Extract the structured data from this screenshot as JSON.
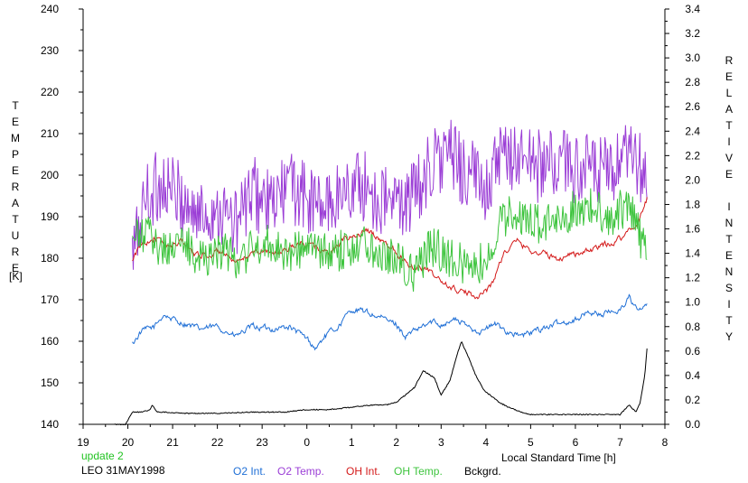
{
  "chart_data": {
    "type": "line",
    "title": "",
    "station": "LEO 31MAY1998",
    "update": "update 2",
    "xlabel": "Local Standard Time [h]",
    "ylabel_left": "TEMPERATURE",
    "ylabel_left_unit": "[K]",
    "ylabel_right": "RELATIVE INTENSITY",
    "xlim": [
      19,
      32
    ],
    "ylim_left": [
      140,
      240
    ],
    "ylim_right": [
      0.0,
      3.4
    ],
    "x_ticks": [
      "19",
      "20",
      "21",
      "22",
      "23",
      "0",
      "1",
      "2",
      "3",
      "4",
      "5",
      "6",
      "7",
      "8"
    ],
    "y_left_ticks": [
      "140",
      "150",
      "160",
      "170",
      "180",
      "190",
      "200",
      "210",
      "220",
      "230",
      "240"
    ],
    "y_right_ticks": [
      "0.0",
      "0.2",
      "0.4",
      "0.6",
      "0.8",
      "1.0",
      "1.2",
      "1.4",
      "1.6",
      "1.8",
      "2.0",
      "2.2",
      "2.4",
      "2.6",
      "2.8",
      "3.0",
      "3.2",
      "3.4"
    ],
    "grid": false,
    "legend_position": "bottom",
    "series": [
      {
        "name": "O2 Int.",
        "axis": "right",
        "color": "#1f6fd6",
        "x": [
          20.1,
          20.3,
          20.6,
          20.8,
          21.0,
          21.3,
          21.6,
          22.0,
          22.4,
          22.8,
          23.2,
          23.6,
          24.0,
          24.2,
          24.4,
          24.7,
          25.0,
          25.3,
          25.6,
          26.0,
          26.2,
          26.5,
          26.8,
          27.0,
          27.3,
          27.6,
          27.9,
          28.2,
          28.5,
          28.8,
          29.2,
          29.6,
          30.0,
          30.3,
          30.6,
          31.0,
          31.2,
          31.4,
          31.6
        ],
        "y": [
          0.66,
          0.76,
          0.8,
          0.9,
          0.86,
          0.82,
          0.78,
          0.8,
          0.72,
          0.8,
          0.78,
          0.8,
          0.7,
          0.62,
          0.72,
          0.8,
          0.94,
          0.92,
          0.88,
          0.82,
          0.72,
          0.78,
          0.84,
          0.82,
          0.86,
          0.8,
          0.76,
          0.82,
          0.76,
          0.72,
          0.78,
          0.82,
          0.86,
          0.92,
          0.9,
          0.94,
          1.04,
          0.92,
          0.98
        ]
      },
      {
        "name": "O2 Temp.",
        "axis": "left",
        "color": "#9b3ed6",
        "x": [
          20.1,
          20.4,
          20.8,
          21.2,
          21.6,
          22.0,
          22.4,
          22.8,
          23.2,
          23.6,
          24.0,
          24.4,
          24.8,
          25.2,
          25.6,
          26.0,
          26.4,
          26.8,
          27.2,
          27.6,
          28.0,
          28.4,
          28.8,
          29.2,
          29.6,
          30.0,
          30.4,
          30.8,
          31.2,
          31.6
        ],
        "y": [
          180,
          195,
          198,
          194,
          190,
          192,
          188,
          196,
          192,
          198,
          194,
          192,
          196,
          198,
          194,
          193,
          195,
          203,
          205,
          200,
          198,
          204,
          205,
          202,
          203,
          202,
          201,
          200,
          204,
          200
        ]
      },
      {
        "name": "OH Int.",
        "axis": "right",
        "color": "#d41a1a",
        "x": [
          20.1,
          20.3,
          20.6,
          20.9,
          21.2,
          21.5,
          21.8,
          22.1,
          22.4,
          22.7,
          23.0,
          23.3,
          23.6,
          23.9,
          24.2,
          24.5,
          24.8,
          25.1,
          25.4,
          25.7,
          26.0,
          26.3,
          26.6,
          26.9,
          27.2,
          27.5,
          27.8,
          28.1,
          28.4,
          28.7,
          29.0,
          29.3,
          29.6,
          29.9,
          30.2,
          30.5,
          30.8,
          31.1,
          31.4,
          31.6
        ],
        "y": [
          1.33,
          1.48,
          1.53,
          1.45,
          1.5,
          1.4,
          1.38,
          1.42,
          1.3,
          1.38,
          1.43,
          1.4,
          1.45,
          1.48,
          1.45,
          1.4,
          1.5,
          1.55,
          1.58,
          1.5,
          1.42,
          1.3,
          1.28,
          1.2,
          1.12,
          1.08,
          1.05,
          1.12,
          1.4,
          1.5,
          1.42,
          1.4,
          1.35,
          1.4,
          1.4,
          1.45,
          1.48,
          1.55,
          1.65,
          1.85
        ]
      },
      {
        "name": "OH Temp.",
        "axis": "left",
        "color": "#3ec43e",
        "x": [
          20.1,
          20.4,
          20.8,
          21.2,
          21.6,
          22.0,
          22.4,
          22.8,
          23.2,
          23.6,
          24.0,
          24.4,
          24.8,
          25.2,
          25.6,
          26.0,
          26.4,
          26.8,
          27.2,
          27.6,
          28.0,
          28.4,
          28.8,
          29.2,
          29.6,
          30.0,
          30.4,
          30.8,
          31.2,
          31.6
        ],
        "y": [
          184,
          186,
          182,
          184,
          180,
          182,
          180,
          182,
          184,
          181,
          183,
          181,
          182,
          184,
          182,
          180,
          176,
          183,
          180,
          178,
          179,
          190,
          190,
          188,
          189,
          192,
          192,
          190,
          193,
          180
        ]
      },
      {
        "name": "Bckgrd.",
        "axis": "right",
        "color": "#000000",
        "x": [
          19.7,
          19.95,
          20.1,
          20.3,
          20.5,
          20.55,
          20.65,
          20.8,
          21.3,
          22.0,
          22.8,
          23.5,
          24.0,
          24.5,
          25.0,
          25.5,
          25.8,
          26.0,
          26.4,
          26.6,
          26.85,
          27.0,
          27.2,
          27.3,
          27.45,
          27.6,
          27.75,
          27.95,
          28.3,
          28.5,
          28.8,
          29.0,
          29.5,
          30.0,
          30.5,
          31.0,
          31.2,
          31.35,
          31.45,
          31.55,
          31.6
        ],
        "y": [
          0.0,
          0.0,
          0.1,
          0.1,
          0.12,
          0.16,
          0.1,
          0.1,
          0.09,
          0.09,
          0.1,
          0.1,
          0.12,
          0.12,
          0.14,
          0.16,
          0.16,
          0.18,
          0.3,
          0.44,
          0.38,
          0.24,
          0.36,
          0.5,
          0.68,
          0.56,
          0.42,
          0.28,
          0.18,
          0.14,
          0.1,
          0.08,
          0.08,
          0.08,
          0.08,
          0.08,
          0.16,
          0.1,
          0.18,
          0.4,
          0.62
        ]
      }
    ]
  }
}
